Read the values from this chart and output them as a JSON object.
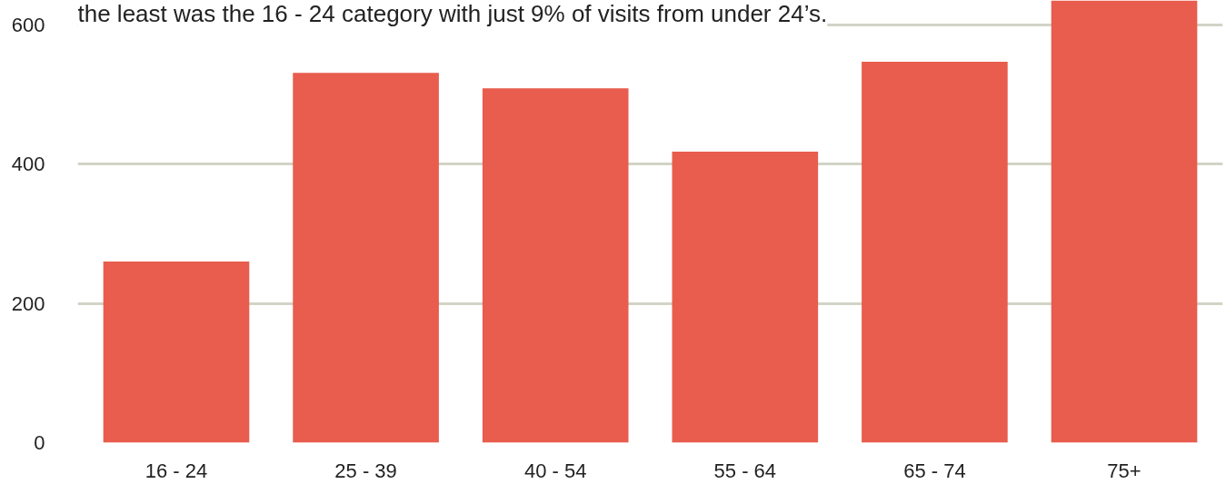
{
  "chart_data": {
    "type": "bar",
    "categories": [
      "16 - 24",
      "25 - 39",
      "40 - 54",
      "55 - 64",
      "65 - 74",
      "75+"
    ],
    "values": [
      260,
      531,
      509,
      418,
      547,
      635
    ],
    "color": "#e85d4d",
    "ylim": [
      0,
      635
    ],
    "yticks": [
      0,
      200,
      400,
      600
    ],
    "grid": "y",
    "annotations": [
      "the least was the 16 - 24 category with just 9% of visits from under 24’s."
    ]
  }
}
